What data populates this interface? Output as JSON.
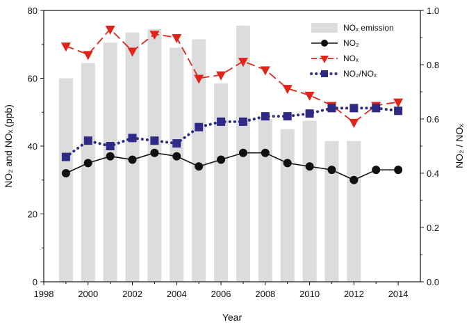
{
  "chart_data": {
    "type": "bar+line",
    "x": [
      1999,
      2000,
      2001,
      2002,
      2003,
      2004,
      2005,
      2006,
      2007,
      2008,
      2009,
      2010,
      2011,
      2012,
      2013,
      2014
    ],
    "xlabel": "Year",
    "xlim": [
      1998,
      2015
    ],
    "xticks": [
      1998,
      2000,
      2002,
      2004,
      2006,
      2008,
      2010,
      2012,
      2014
    ],
    "ylabel_left": "NO₂ and NOₓ (ppb)",
    "ylim_left": [
      0,
      80
    ],
    "yticks_left": [
      0,
      20,
      40,
      60,
      80
    ],
    "ylabel_right": "NO₂ / NOₓ",
    "ylim_right": [
      0.0,
      1.0
    ],
    "yticks_right": [
      "0.0",
      "0.2",
      "0.4",
      "0.6",
      "0.8",
      "1.0"
    ],
    "legend_position": "top-right",
    "grid": false,
    "series": [
      {
        "name": "NOₓ emission",
        "kind": "bar",
        "axis": "left",
        "color": "#dcdcdc",
        "values": [
          60,
          64.5,
          70.5,
          73.5,
          74.5,
          69,
          71.5,
          58.5,
          75.5,
          48,
          45,
          47.5,
          41.5,
          41.5,
          null,
          null
        ]
      },
      {
        "name": "NO₂",
        "kind": "line",
        "axis": "left",
        "color": "#111111",
        "marker": "circle",
        "line": "solid",
        "values": [
          32,
          35,
          37,
          36,
          38,
          37,
          34,
          36,
          38,
          38,
          35,
          34,
          33,
          30,
          33,
          33
        ]
      },
      {
        "name": "NOₓ",
        "kind": "line",
        "axis": "left",
        "color": "#e0241b",
        "marker": "triangle-down",
        "line": "dashed",
        "values": [
          69.5,
          67,
          74.5,
          68,
          73,
          72,
          60,
          61,
          65,
          62.5,
          57,
          55,
          52,
          47,
          52,
          53
        ]
      },
      {
        "name": "NO₂/NOₓ",
        "kind": "line",
        "axis": "right",
        "color": "#2e2a86",
        "marker": "square",
        "line": "dotted",
        "values": [
          0.46,
          0.52,
          0.5,
          0.53,
          0.52,
          0.51,
          0.57,
          0.59,
          0.59,
          0.61,
          0.61,
          0.62,
          0.64,
          0.64,
          0.64,
          0.63
        ]
      }
    ]
  }
}
